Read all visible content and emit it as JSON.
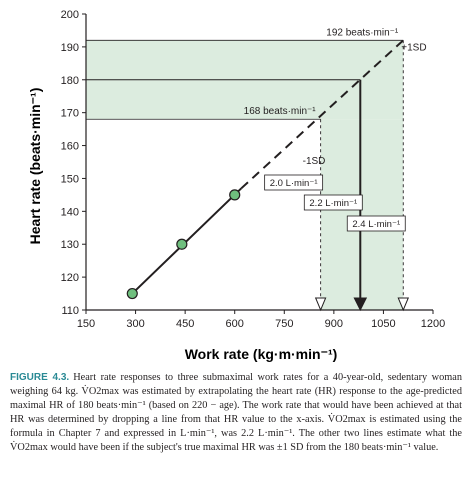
{
  "chart_data": {
    "type": "line",
    "xlabel": "Work rate (kg·m·min⁻¹)",
    "ylabel": "Heart rate (beats·min⁻¹)",
    "xlim": [
      150,
      1200
    ],
    "ylim": [
      110,
      200
    ],
    "x_ticks": [
      150,
      300,
      450,
      600,
      750,
      900,
      1050,
      1200
    ],
    "y_ticks": [
      110,
      120,
      130,
      140,
      150,
      160,
      170,
      180,
      190,
      200
    ],
    "grid": false,
    "points": [
      {
        "x": 290,
        "y": 115
      },
      {
        "x": 440,
        "y": 130
      },
      {
        "x": 600,
        "y": 145
      }
    ],
    "fit_line": {
      "x_start": 290,
      "x_end": 620,
      "y_start": 115,
      "y_end": 147
    },
    "extrapolation": {
      "x_start": 620,
      "x_end": 1110,
      "y_start": 147,
      "y_end": 192
    },
    "reference_lines": [
      {
        "hr": 192,
        "work_rate": 1110,
        "label": "192 beats·min⁻¹",
        "sd_label": "+1SD",
        "vo2_label": "2.4 L·min⁻¹",
        "style": "dashed"
      },
      {
        "hr": 180,
        "work_rate": 980,
        "label": "",
        "sd_label": "",
        "vo2_label": "2.2 L·min⁻¹",
        "style": "solid"
      },
      {
        "hr": 168,
        "work_rate": 860,
        "label": "168 beats·min⁻¹",
        "sd_label": "-1SD",
        "vo2_label": "2.0 L·min⁻¹",
        "style": "dashed"
      }
    ],
    "shaded_band": {
      "hr_range": [
        168,
        192
      ],
      "work_rate_range": [
        860,
        1110
      ]
    },
    "colors": {
      "shade": "#dcecdf",
      "line": "#231f20",
      "point_fill": "#6fbf7e",
      "caption_label": "#2a8a95"
    }
  },
  "caption": {
    "label": "FIGURE 4.3.",
    "text": "Heart rate responses to three submaximal work rates for a 40-year-old, sedentary woman weighing 64 kg. V̇O2max was estimated by extrapolating the heart rate (HR) response to the age-predicted maximal HR of 180 beats·min⁻¹ (based on 220 − age). The work rate that would have been achieved at that HR was determined by dropping a line from that HR value to the x-axis. V̇O2max is estimated using the formula in Chapter 7 and expressed in L·min⁻¹, was 2.2 L·min⁻¹. The other two lines estimate what the V̇O2max would have been if the subject's true maximal HR was ±1 SD from the 180 beats·min⁻¹ value."
  }
}
